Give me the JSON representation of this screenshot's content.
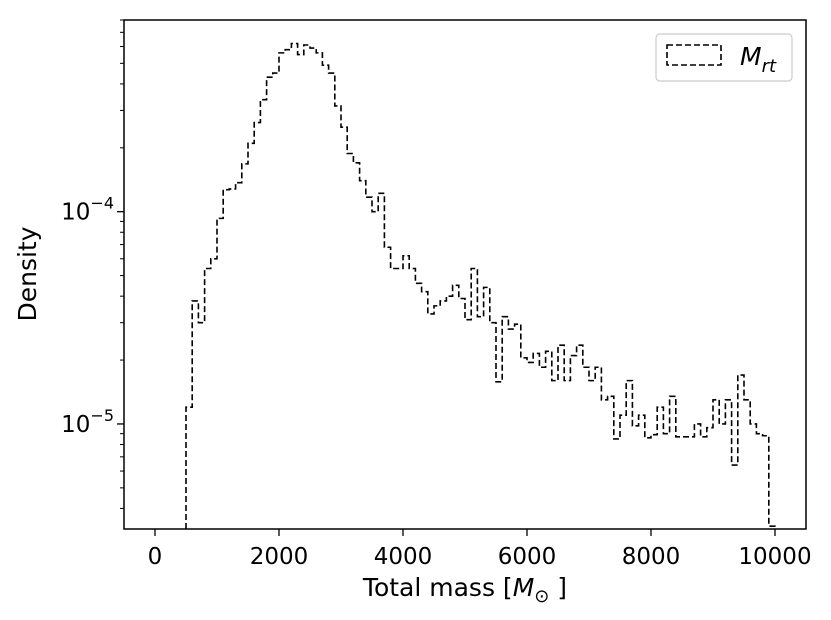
{
  "chart_data": {
    "type": "step-histogram",
    "xlabel": "Total mass [M⊙]",
    "ylabel": "Density",
    "xlim": [
      -500,
      10500
    ],
    "ylim": [
      3.2e-06,
      0.0008
    ],
    "xscale": "linear",
    "yscale": "log",
    "grid": false,
    "legend_position": "top-right",
    "xticks": [
      0,
      2000,
      4000,
      6000,
      8000,
      10000
    ],
    "xtick_labels": [
      "0",
      "2000",
      "4000",
      "6000",
      "8000",
      "10000"
    ],
    "yticks_major": [
      {
        "value": 1e-05,
        "base": "10",
        "exp": "−5"
      },
      {
        "value": 0.0001,
        "base": "10",
        "exp": "−4"
      }
    ],
    "series": [
      {
        "name": "M_rt",
        "legend_main": "M",
        "legend_sub": "rt",
        "color": "#000000",
        "linestyle": "dashed",
        "bin_edges": [
          500,
          600,
          700,
          800,
          900,
          1000,
          1100,
          1200,
          1300,
          1400,
          1500,
          1600,
          1700,
          1800,
          1900,
          2000,
          2100,
          2200,
          2300,
          2400,
          2500,
          2600,
          2700,
          2800,
          2900,
          3000,
          3100,
          3200,
          3300,
          3400,
          3500,
          3600,
          3700,
          3800,
          3900,
          4000,
          4100,
          4200,
          4300,
          4400,
          4500,
          4600,
          4700,
          4800,
          4900,
          5000,
          5100,
          5200,
          5300,
          5400,
          5500,
          5600,
          5700,
          5800,
          5900,
          6000,
          6100,
          6200,
          6300,
          6400,
          6500,
          6600,
          6700,
          6800,
          6900,
          7000,
          7100,
          7200,
          7300,
          7400,
          7500,
          7600,
          7700,
          7800,
          7900,
          8000,
          8100,
          8200,
          8300,
          8400,
          8500,
          8600,
          8700,
          8800,
          8900,
          9000,
          9100,
          9200,
          9300,
          9400,
          9500,
          9600,
          9700,
          9800,
          9900,
          10000
        ],
        "densities": [
          1.2e-05,
          3.8e-05,
          3e-05,
          5.4e-05,
          6e-05,
          9.3e-05,
          0.000127,
          0.000128,
          0.000137,
          0.000168,
          0.00021,
          0.000263,
          0.000337,
          0.00043,
          0.00045,
          0.00056,
          0.00058,
          0.00062,
          0.00055,
          0.00061,
          0.00059,
          0.00056,
          0.00049,
          0.00045,
          0.000315,
          0.00025,
          0.000188,
          0.00017,
          0.00014,
          0.000117,
          0.0001,
          0.000122,
          6.8e-05,
          5.4e-05,
          5.4e-05,
          6.2e-05,
          5.4e-05,
          4.6e-05,
          4.2e-05,
          3.3e-05,
          3.6e-05,
          3.8e-05,
          4e-05,
          4.5e-05,
          3.9e-05,
          3.1e-05,
          5.4e-05,
          3.2e-05,
          4.4e-05,
          3e-05,
          1.58e-05,
          3.2e-05,
          2.8e-05,
          2.95e-05,
          2.05e-05,
          1.95e-05,
          2.15e-05,
          1.85e-05,
          2.2e-05,
          1.6e-05,
          2.35e-05,
          1.6e-05,
          2.1e-05,
          2.35e-05,
          1.85e-05,
          1.6e-05,
          1.85e-05,
          1.3e-05,
          1.35e-05,
          8.5e-06,
          1.1e-05,
          1.6e-05,
          9.8e-06,
          1.1e-05,
          8.6e-06,
          8.9e-06,
          1.2e-05,
          9e-06,
          1.35e-05,
          8.7e-06,
          8.7e-06,
          8.7e-06,
          1e-05,
          8.7e-06,
          9.6e-06,
          1.3e-05,
          1e-05,
          1.3e-05,
          6.4e-06,
          1.7e-05,
          1.3e-05,
          1e-05,
          9e-06,
          8.8e-06,
          3.3e-06
        ]
      }
    ]
  }
}
